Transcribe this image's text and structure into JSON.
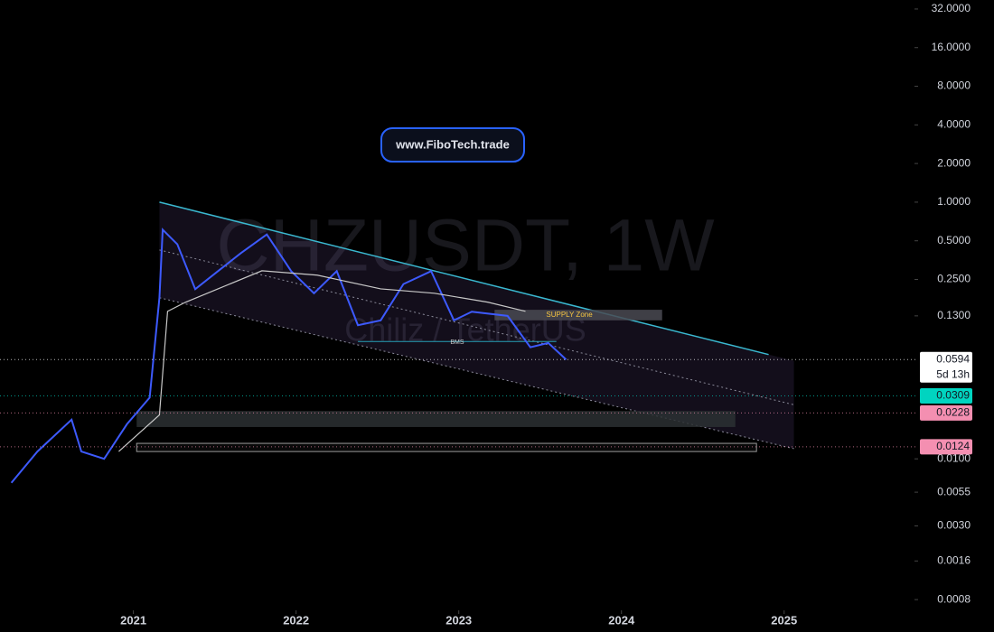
{
  "chart_data": {
    "type": "line",
    "title": "CHZUSDT, 1W",
    "subtitle": "Chiliz / TetherUS",
    "link": "www.FiboTech.trade",
    "log_scale": true,
    "xlim": [
      2020.18,
      2025.79
    ],
    "xticks": [
      {
        "value": 2021,
        "label": "2021"
      },
      {
        "value": 2022,
        "label": "2022"
      },
      {
        "value": 2023,
        "label": "2023"
      },
      {
        "value": 2024,
        "label": "2024"
      },
      {
        "value": 2025,
        "label": "2025"
      }
    ],
    "ylim": [
      0.00066,
      37.6
    ],
    "yticks": [
      {
        "value": 32,
        "label": "32.0000"
      },
      {
        "value": 16,
        "label": "16.0000"
      },
      {
        "value": 8,
        "label": "8.0000"
      },
      {
        "value": 4,
        "label": "4.0000"
      },
      {
        "value": 2,
        "label": "2.0000"
      },
      {
        "value": 1,
        "label": "1.0000"
      },
      {
        "value": 0.5,
        "label": "0.5000"
      },
      {
        "value": 0.25,
        "label": "0.2500"
      },
      {
        "value": 0.13,
        "label": "0.1300"
      },
      {
        "value": 0.01,
        "label": "0.0100"
      },
      {
        "value": 0.0055,
        "label": "0.0055"
      },
      {
        "value": 0.003,
        "label": "0.0030"
      },
      {
        "value": 0.0016,
        "label": "0.0016"
      },
      {
        "value": 0.0008,
        "label": "0.0008"
      }
    ],
    "series": [
      {
        "color": "#3d5afe",
        "x": [
          2020.25,
          2020.41,
          2020.62,
          2020.68,
          2020.82,
          2020.96,
          2021.1,
          2021.16,
          2021.18,
          2021.27,
          2021.38,
          2021.52,
          2021.66,
          2021.82,
          2021.97,
          2022.11,
          2022.25,
          2022.38,
          2022.52,
          2022.66,
          2022.83,
          2022.97,
          2023.08,
          2023.3,
          2023.44,
          2023.55,
          2023.66
        ],
        "values": [
          0.0065,
          0.0114,
          0.0202,
          0.0114,
          0.01,
          0.0186,
          0.03,
          0.18,
          0.61,
          0.47,
          0.21,
          0.29,
          0.4,
          0.56,
          0.29,
          0.195,
          0.29,
          0.11,
          0.12,
          0.23,
          0.29,
          0.12,
          0.14,
          0.13,
          0.074,
          0.08,
          0.0594
        ]
      },
      {
        "color": "#c8c8c8",
        "x": [
          2020.91,
          2021.16,
          2021.21,
          2021.32,
          2021.52,
          2021.79,
          2022.13,
          2022.52,
          2022.85,
          2023.18,
          2023.41
        ],
        "values": [
          0.0114,
          0.022,
          0.141,
          0.166,
          0.211,
          0.292,
          0.27,
          0.211,
          0.195,
          0.166,
          0.141
        ]
      }
    ],
    "channel": {
      "x": [
        2021.16,
        2025.06
      ],
      "upper": [
        1.0,
        0.058
      ],
      "lower": [
        0.18,
        0.012
      ],
      "color": "#3ab8d0"
    },
    "zones": [
      {
        "label": "SUPPLY Zone",
        "x": [
          2023.22,
          2024.25
        ],
        "range": [
          0.12,
          0.145
        ],
        "color": "#4a4a52"
      },
      {
        "x": [
          2021.02,
          2024.7
        ],
        "range": [
          0.0177,
          0.0236
        ],
        "color": "#2c3032"
      },
      {
        "x": [
          2021.02,
          2024.83
        ],
        "range": [
          0.0114,
          0.0132
        ],
        "color": "#0a0a0a"
      }
    ],
    "bms": {
      "label": "BMS",
      "x": [
        2022.38,
        2023.6
      ],
      "value": 0.082,
      "color": "#26a0b8"
    },
    "price_tags": [
      {
        "value": 0.0594,
        "color": "#ffffff",
        "countdown": "5d 13h"
      },
      {
        "value": 0.0309,
        "color": "#00d4c0"
      },
      {
        "value": 0.0228,
        "color": "#f48fb1"
      },
      {
        "value": 0.0124,
        "color": "#f48fb1"
      }
    ]
  }
}
